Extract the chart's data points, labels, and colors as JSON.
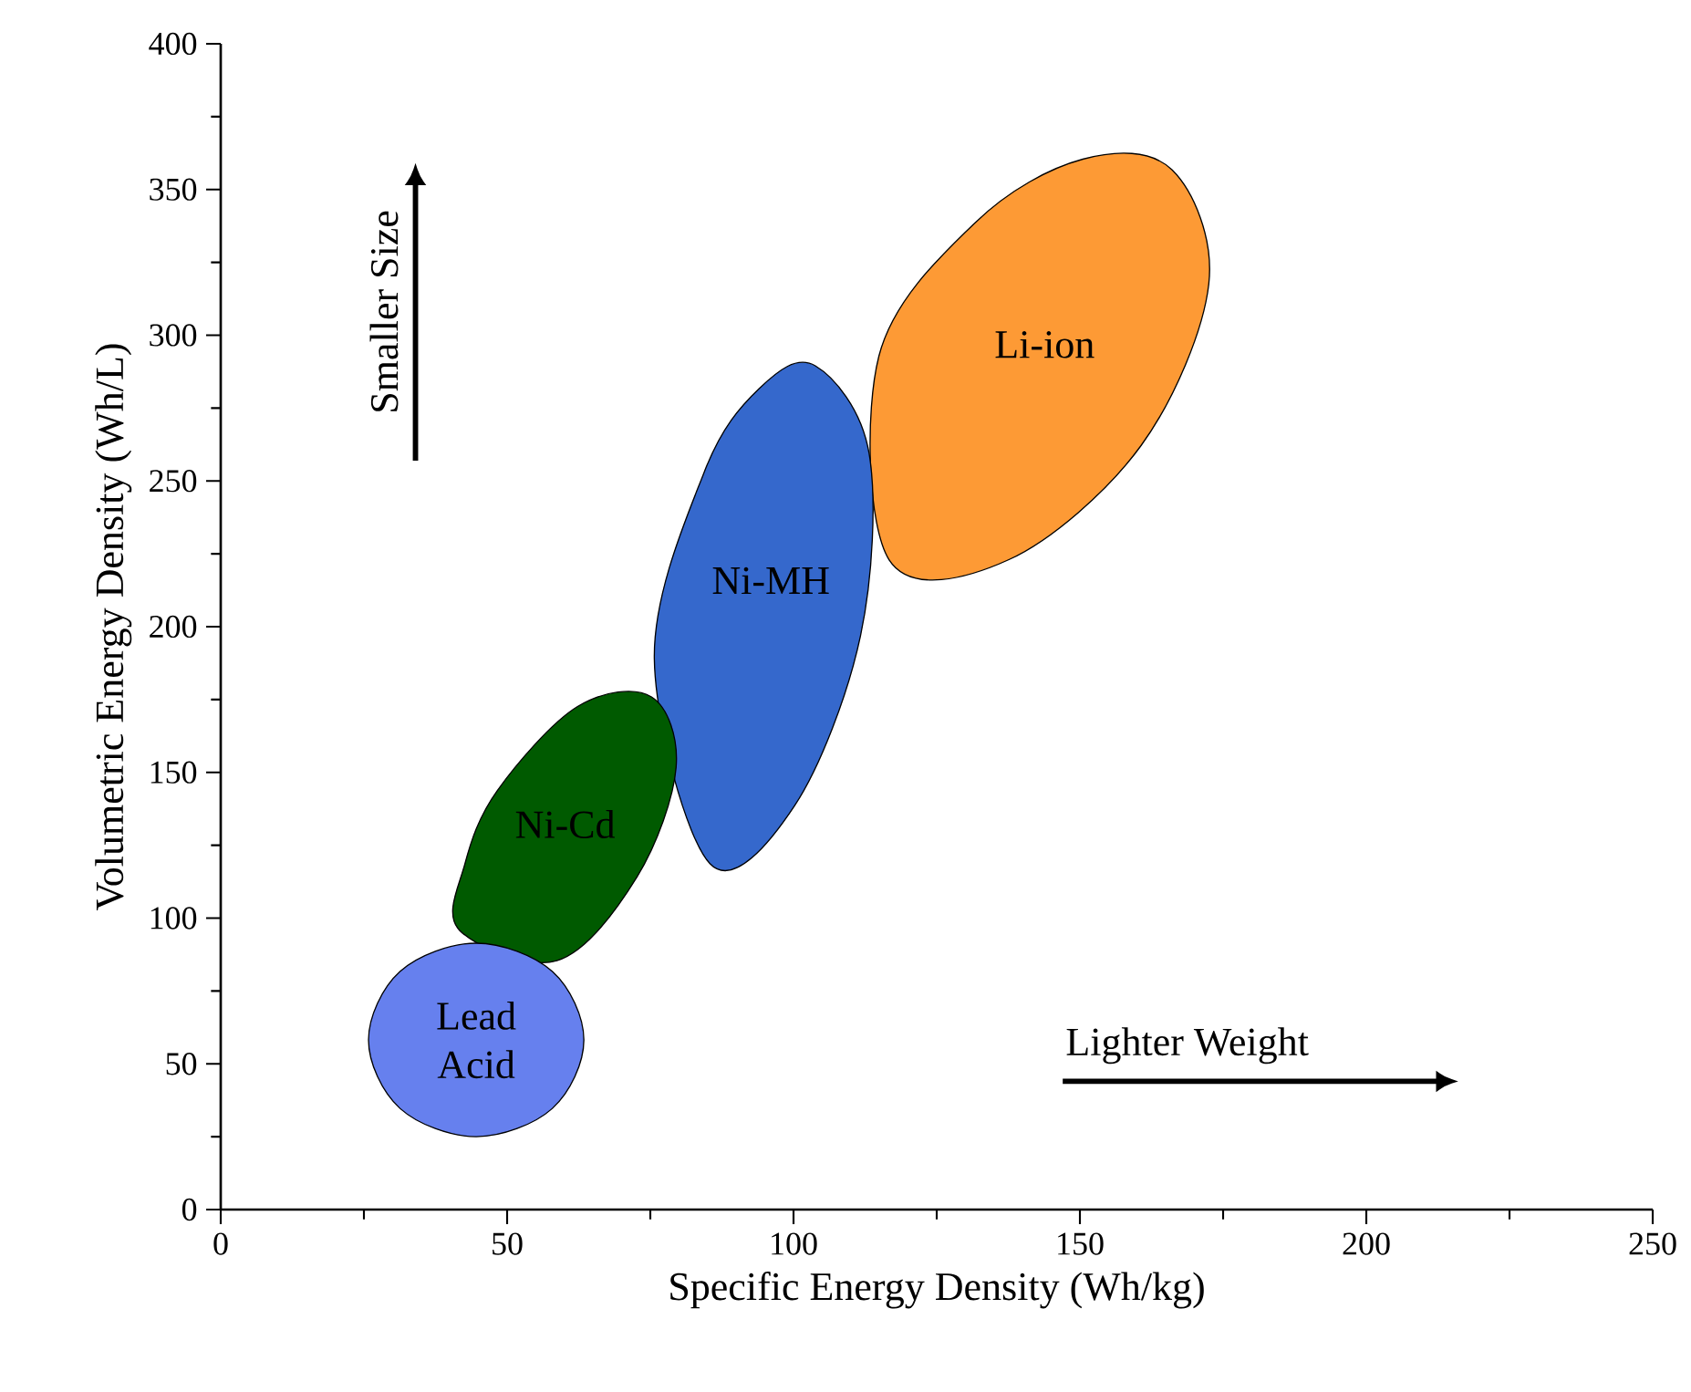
{
  "chart_data": {
    "type": "area",
    "xlabel": "Specific Energy Density (Wh/kg)",
    "ylabel": "Volumetric Energy Density (Wh/L)",
    "xlim": [
      0,
      250
    ],
    "ylim": [
      0,
      400
    ],
    "xticks": [
      0,
      50,
      100,
      150,
      200,
      250
    ],
    "yticks": [
      0,
      50,
      100,
      150,
      200,
      250,
      300,
      350,
      400
    ],
    "grid": false,
    "marker": "none",
    "annotations": [
      "Smaller Size",
      "Lighter Weight"
    ],
    "series": [
      {
        "name": "Lead Acid",
        "color": "#6680ee",
        "x": [
          63.4,
          57.9,
          44.6,
          31.3,
          25.8,
          31.3,
          44.6,
          57.9
        ],
        "values": [
          58.2,
          81.7,
          91.4,
          81.7,
          58.2,
          34.7,
          25.0,
          34.7
        ]
      },
      {
        "name": "Ni-Cd",
        "color": "#005a00",
        "x": [
          75.2,
          79.5,
          72.7,
          58.7,
          41.7,
          42.6,
          48.3,
          62.3
        ],
        "values": [
          175.9,
          151.7,
          114.2,
          85.4,
          95.8,
          118.4,
          143.8,
          172.6
        ]
      },
      {
        "name": "Ni-MH",
        "color": "#3568cc",
        "x": [
          103.8,
          113.2,
          111.7,
          100.2,
          85.4,
          75.7,
          84.4,
          94.0
        ],
        "values": [
          289.5,
          259.4,
          196.9,
          138.6,
          118.7,
          189.0,
          253.0,
          281.7
        ]
      },
      {
        "name": "Li-ion",
        "color": "#fd9a35",
        "x": [
          166.1,
          172.5,
          160.7,
          137.6,
          116.7,
          114.9,
          131.7,
          150.5
        ],
        "values": [
          356.7,
          317.6,
          262.2,
          223.0,
          222.9,
          292.8,
          338.6,
          360.4
        ]
      }
    ]
  }
}
